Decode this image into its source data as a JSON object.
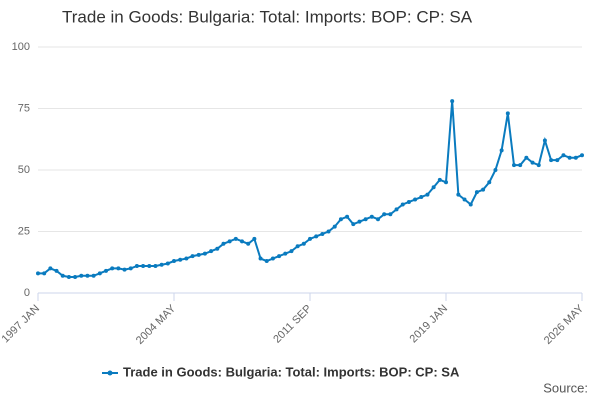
{
  "chart_data": {
    "type": "line",
    "title": "Trade in Goods: Bulgaria: Total: Imports: BOP: CP: SA",
    "source": "Source:",
    "x": [
      "1997 JAN",
      "1997 MAY",
      "1997 SEP",
      "1998 JAN",
      "1998 MAY",
      "1998 SEP",
      "1999 JAN",
      "1999 MAY",
      "1999 SEP",
      "2000 JAN",
      "2000 MAY",
      "2000 SEP",
      "2001 JAN",
      "2001 MAY",
      "2001 SEP",
      "2002 JAN",
      "2002 MAY",
      "2002 SEP",
      "2003 JAN",
      "2003 MAY",
      "2003 SEP",
      "2004 JAN",
      "2004 MAY",
      "2004 SEP",
      "2005 JAN",
      "2005 MAY",
      "2005 SEP",
      "2006 JAN",
      "2006 MAY",
      "2006 SEP",
      "2007 JAN",
      "2007 MAY",
      "2007 SEP",
      "2008 JAN",
      "2008 MAY",
      "2008 SEP",
      "2009 JAN",
      "2009 MAY",
      "2009 SEP",
      "2010 JAN",
      "2010 MAY",
      "2010 SEP",
      "2011 JAN",
      "2011 MAY",
      "2011 SEP",
      "2012 JAN",
      "2012 MAY",
      "2012 SEP",
      "2013 JAN",
      "2013 MAY",
      "2013 SEP",
      "2014 JAN",
      "2014 MAY",
      "2014 SEP",
      "2015 JAN",
      "2015 MAY",
      "2015 SEP",
      "2016 JAN",
      "2016 MAY",
      "2016 SEP",
      "2017 JAN",
      "2017 MAY",
      "2017 SEP",
      "2018 JAN",
      "2018 MAY",
      "2018 SEP",
      "2019 JAN",
      "2019 MAY",
      "2019 SEP",
      "2020 JAN",
      "2020 MAY",
      "2020 SEP",
      "2021 JAN",
      "2021 MAY",
      "2021 SEP",
      "2022 JAN",
      "2022 MAY",
      "2022 SEP",
      "2023 JAN",
      "2023 MAY",
      "2023 SEP",
      "2024 JAN",
      "2024 MAY",
      "2024 SEP",
      "2025 JAN",
      "2025 MAY",
      "2025 SEP",
      "2026 JAN",
      "2026 MAY"
    ],
    "series": [
      {
        "name": "Trade in Goods: Bulgaria: Total: Imports: BOP: CP: SA",
        "color": "#0a7bbf",
        "values": [
          8,
          8,
          10,
          9,
          7,
          6.5,
          6.5,
          7,
          7,
          7,
          8,
          9,
          10,
          10,
          9.5,
          10,
          11,
          11,
          11,
          11,
          11.5,
          12,
          13,
          13.5,
          14,
          15,
          15.5,
          16,
          17,
          18,
          20,
          21,
          22,
          21,
          20,
          22,
          14,
          13,
          14,
          15,
          16,
          17,
          19,
          20,
          22,
          23,
          24,
          25,
          27,
          30,
          31,
          28,
          29,
          30,
          31,
          30,
          32,
          32,
          34,
          36,
          37,
          38,
          39,
          40,
          43,
          46,
          45,
          78,
          40,
          38,
          36,
          41,
          42,
          45,
          50,
          58,
          73,
          52,
          52,
          55,
          53,
          52,
          62,
          54,
          54,
          56,
          55,
          55,
          56
        ]
      }
    ],
    "xticks": [
      "1997 JAN",
      "2004 MAY",
      "2011 SEP",
      "2019 JAN",
      "2026 MAY"
    ],
    "ylim": [
      0,
      100
    ],
    "yticks": [
      0,
      25,
      50,
      75,
      100
    ],
    "grid": true
  }
}
